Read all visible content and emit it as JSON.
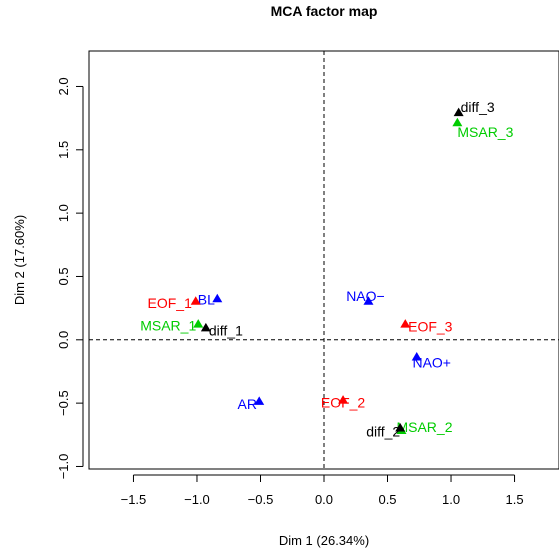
{
  "chart_data": {
    "type": "scatter",
    "title": "MCA factor map",
    "xlabel": "Dim 1 (26.34%)",
    "ylabel": "Dim 2 (17.60%)",
    "xlim": [
      -1.85,
      1.85
    ],
    "ylim": [
      -1.02,
      2.28
    ],
    "x_ticks": [
      -1.5,
      -1.0,
      -0.5,
      0.0,
      0.5,
      1.0,
      1.5
    ],
    "y_ticks": [
      -1.0,
      -0.5,
      0.0,
      0.5,
      1.0,
      1.5,
      2.0
    ],
    "x_tick_labels": [
      "−1.5",
      "−1.0",
      "−0.5",
      "0.0",
      "0.5",
      "1.0",
      "1.5"
    ],
    "y_tick_labels": [
      "−1.0",
      "−0.5",
      "0.0",
      "0.5",
      "1.0",
      "1.5",
      "2.0"
    ],
    "reference_lines": {
      "x": 0,
      "y": 0,
      "style": "dashed"
    },
    "marker": "triangle",
    "series": [
      {
        "color": "#0000ff",
        "points": [
          {
            "label": "BL",
            "x": -0.84,
            "y": 0.32
          },
          {
            "label": "NAO−",
            "x": 0.35,
            "y": 0.3
          },
          {
            "label": "NAO+",
            "x": 0.73,
            "y": -0.14
          },
          {
            "label": "AR",
            "x": -0.51,
            "y": -0.49
          }
        ]
      },
      {
        "color": "#ff0000",
        "points": [
          {
            "label": "EOF_1",
            "x": -1.01,
            "y": 0.3
          },
          {
            "label": "EOF_3",
            "x": 0.64,
            "y": 0.12
          },
          {
            "label": "EOF_2",
            "x": 0.15,
            "y": -0.48
          }
        ]
      },
      {
        "color": "#00cc00",
        "points": [
          {
            "label": "MSAR_1",
            "x": -0.99,
            "y": 0.12
          },
          {
            "label": "MSAR_3",
            "x": 1.05,
            "y": 1.71
          },
          {
            "label": "MSAR_2",
            "x": 0.61,
            "y": -0.72
          }
        ]
      },
      {
        "color": "#000000",
        "points": [
          {
            "label": "diff_1",
            "x": -0.93,
            "y": 0.09
          },
          {
            "label": "diff_3",
            "x": 1.06,
            "y": 1.79
          },
          {
            "label": "diff_2",
            "x": 0.6,
            "y": -0.7
          }
        ]
      }
    ]
  }
}
